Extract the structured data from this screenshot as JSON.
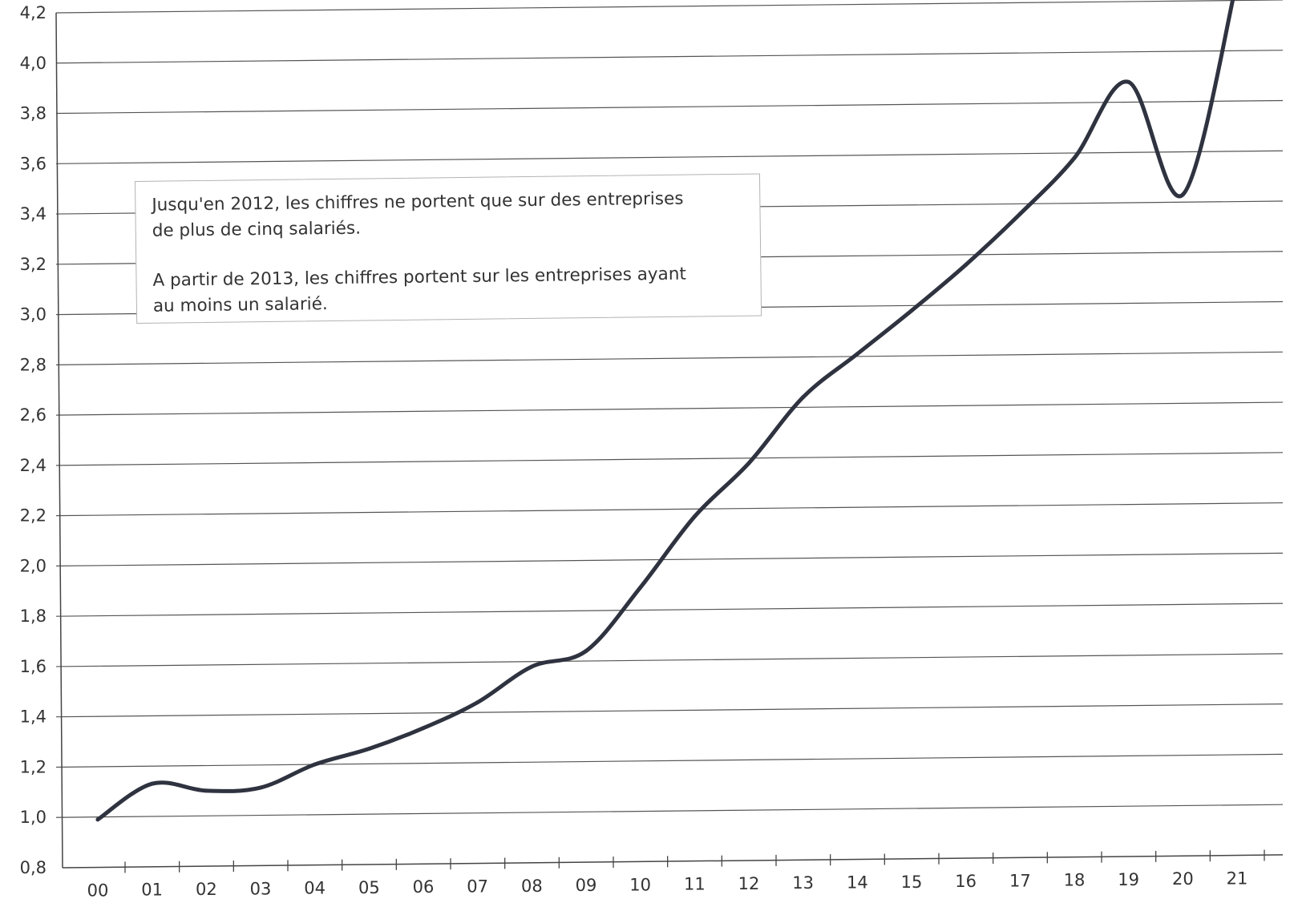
{
  "chart_data": {
    "type": "line",
    "title": "",
    "xlabel": "",
    "ylabel": "",
    "x": [
      "00",
      "01",
      "02",
      "03",
      "04",
      "05",
      "06",
      "07",
      "08",
      "09",
      "10",
      "11",
      "12",
      "13",
      "14",
      "15",
      "16",
      "17",
      "18",
      "19",
      "20",
      "21"
    ],
    "series": [
      {
        "values": [
          0.99,
          1.13,
          1.1,
          1.11,
          1.2,
          1.26,
          1.34,
          1.44,
          1.58,
          1.64,
          1.89,
          2.17,
          2.38,
          2.64,
          2.81,
          2.98,
          3.16,
          3.36,
          3.58,
          3.88,
          3.43,
          4.28
        ]
      }
    ],
    "ylim": [
      0.8,
      4.2
    ],
    "yticks": [
      "4,2",
      "4,0",
      "3,8",
      "3,6",
      "3,4",
      "3,2",
      "3,0",
      "2,8",
      "2,6",
      "2,4",
      "2,2",
      "2,0",
      "1,8",
      "1,6",
      "1,4",
      "1,2",
      "1,0",
      "0,8"
    ],
    "grid": true,
    "line_color": "#2f3340",
    "grid_color": "#555555",
    "annotation": {
      "line1": "Jusqu'en 2012, les chiffres ne portent que sur des entreprises",
      "line2": "de plus de cinq salariés.",
      "line3": "A partir de 2013, les chiffres portent sur les entreprises ayant",
      "line4": "au moins un salarié."
    }
  }
}
